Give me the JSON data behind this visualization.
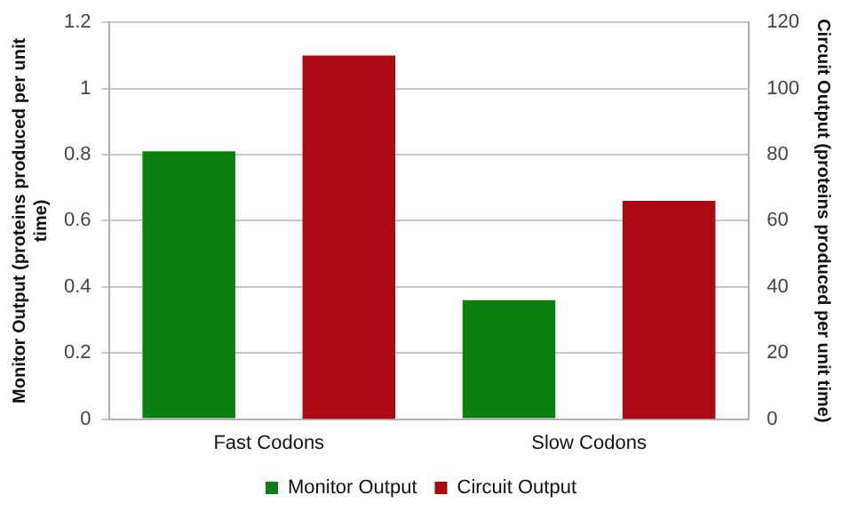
{
  "chart_data": {
    "type": "bar",
    "categories": [
      "Fast Codons",
      "Slow Codons"
    ],
    "series": [
      {
        "name": "Monitor Output",
        "color": "#0a8010",
        "values": [
          0.81,
          0.36
        ]
      },
      {
        "name": "Circuit Output",
        "color": "#ac0a12",
        "values": [
          110,
          66
        ],
        "axis": "y2"
      }
    ],
    "ylabel": "Monitor Output (proteins produced per unit time)",
    "y2label": "Circuit Output (proteins produced per unit time)",
    "ylim": [
      0,
      1.2
    ],
    "yticks": [
      0,
      0.2,
      0.4,
      0.6,
      0.8,
      1,
      1.2
    ],
    "y2lim": [
      0,
      120
    ],
    "y2ticks": [
      0,
      20,
      40,
      60,
      80,
      100,
      120
    ],
    "grid": "y",
    "legend": "bottom"
  }
}
